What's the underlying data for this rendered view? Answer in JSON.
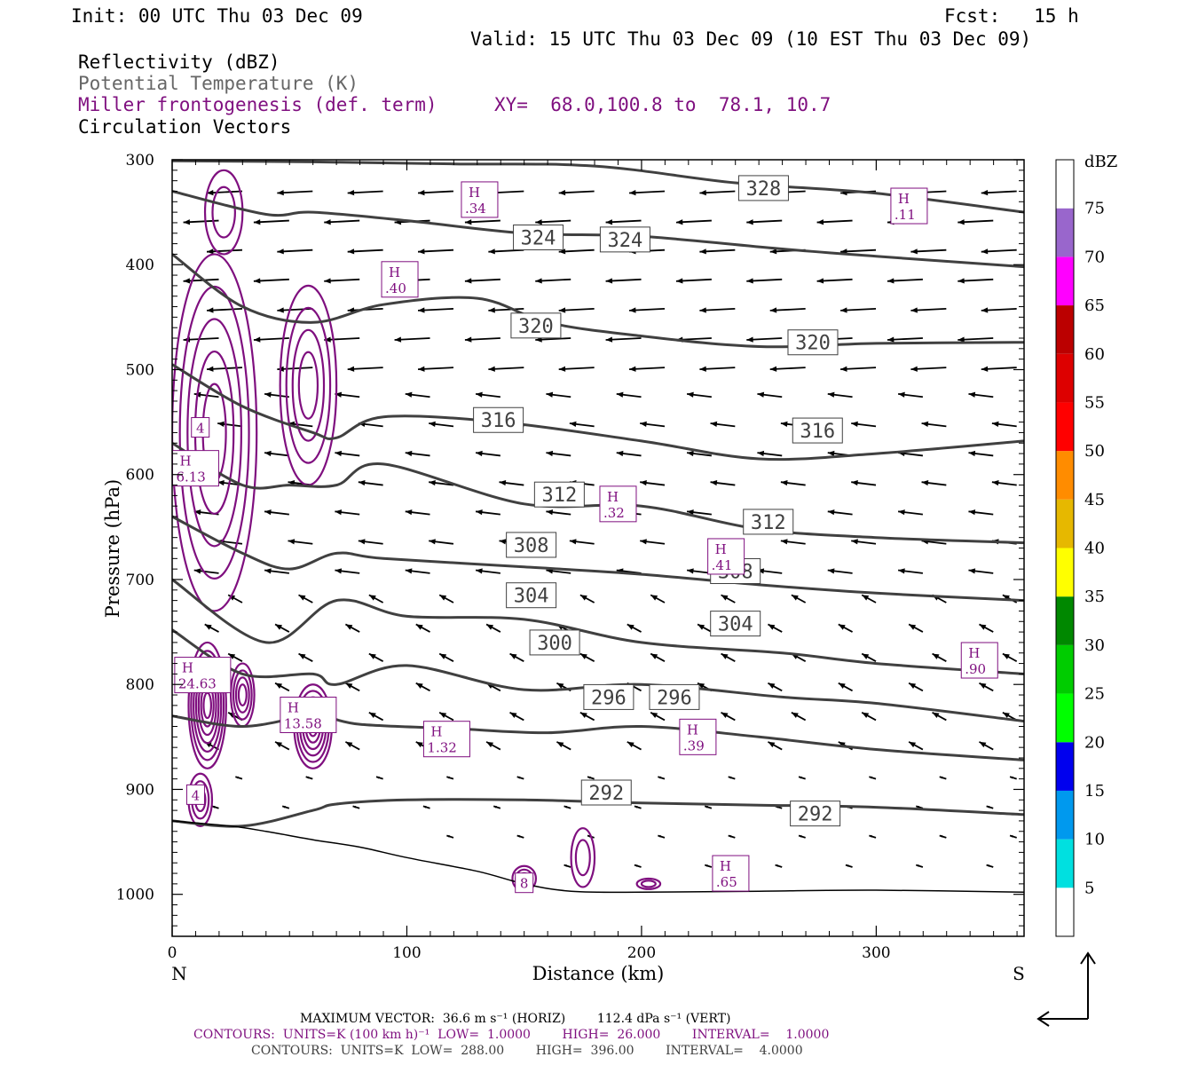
{
  "header": {
    "init": "Init: 00 UTC Thu 03 Dec 09",
    "fcst": "Fcst:   15 h",
    "valid": "Valid: 15 UTC Thu 03 Dec 09 (10 EST Thu 03 Dec 09)",
    "fields": [
      {
        "text": "Reflectivity (dBZ)",
        "color": "#000000"
      },
      {
        "text": "Potential Temperature (K)",
        "color": "#666666"
      },
      {
        "text": "Miller frontogenesis (def. term)",
        "color": "#7f0f7f"
      },
      {
        "text": "Circulation Vectors",
        "color": "#000000"
      }
    ],
    "xy": "XY=  68.0,100.8 to  78.1, 10.7"
  },
  "chart_data": {
    "type": "line",
    "xlabel": "Distance (km)",
    "ylabel": "Pressure (hPa)",
    "xlim": [
      0,
      363
    ],
    "ylim": [
      1040,
      300
    ],
    "x_ticks": [
      "0",
      "100",
      "200",
      "300"
    ],
    "y_ticks": [
      "300",
      "400",
      "500",
      "600",
      "700",
      "800",
      "900",
      "1000"
    ],
    "left_label": "N",
    "right_label": "S",
    "theta_contours": [
      {
        "name": "328",
        "x": [
          0,
          60,
          120,
          180,
          240,
          300,
          363
        ],
        "p": [
          301,
          302,
          304,
          306,
          322,
          332,
          350
        ]
      },
      {
        "name": "324",
        "x": [
          0,
          40,
          60,
          100,
          150,
          200,
          260,
          300,
          363
        ],
        "p": [
          330,
          352,
          350,
          358,
          370,
          373,
          385,
          392,
          402
        ]
      },
      {
        "name": "320",
        "x": [
          0,
          30,
          60,
          90,
          130,
          160,
          200,
          250,
          300,
          363
        ],
        "p": [
          390,
          440,
          455,
          438,
          432,
          455,
          468,
          478,
          475,
          474
        ]
      },
      {
        "name": "316",
        "x": [
          0,
          30,
          60,
          70,
          90,
          140,
          200,
          250,
          300,
          363
        ],
        "p": [
          495,
          535,
          560,
          565,
          545,
          550,
          568,
          585,
          580,
          568
        ]
      },
      {
        "name": "312",
        "x": [
          0,
          30,
          50,
          70,
          90,
          150,
          200,
          250,
          300,
          363
        ],
        "p": [
          570,
          610,
          610,
          610,
          590,
          628,
          630,
          652,
          660,
          665
        ]
      },
      {
        "name": "308",
        "x": [
          0,
          30,
          50,
          70,
          90,
          150,
          200,
          250,
          300,
          363
        ],
        "p": [
          640,
          675,
          690,
          675,
          680,
          688,
          695,
          705,
          713,
          720
        ]
      },
      {
        "name": "304",
        "x": [
          0,
          40,
          70,
          100,
          150,
          200,
          260,
          300,
          363
        ],
        "p": [
          700,
          760,
          720,
          735,
          738,
          760,
          770,
          780,
          790
        ]
      },
      {
        "name": "300",
        "x": [
          0,
          30,
          60,
          70,
          100,
          150,
          200,
          260,
          300,
          363
        ],
        "p": [
          748,
          790,
          790,
          800,
          782,
          805,
          800,
          812,
          818,
          835
        ]
      },
      {
        "name": "296",
        "x": [
          0,
          30,
          60,
          80,
          120,
          160,
          200,
          250,
          300,
          363
        ],
        "p": [
          830,
          840,
          830,
          838,
          842,
          846,
          840,
          850,
          862,
          872
        ]
      },
      {
        "name": "292",
        "x": [
          0,
          30,
          60,
          70,
          100,
          150,
          200,
          250,
          300,
          363
        ],
        "p": [
          930,
          935,
          920,
          914,
          910,
          910,
          913,
          915,
          917,
          924
        ]
      }
    ],
    "terrain": {
      "x": [
        0,
        25,
        40,
        60,
        80,
        100,
        130,
        150,
        170,
        200,
        250,
        300,
        363
      ],
      "p": [
        930,
        935,
        940,
        948,
        955,
        965,
        978,
        990,
        997,
        998,
        997,
        996,
        998
      ]
    },
    "theta_labels": [
      {
        "text": "328",
        "x": 252,
        "p": 327
      },
      {
        "text": "324",
        "x": 156,
        "p": 374
      },
      {
        "text": "324",
        "x": 193,
        "p": 376
      },
      {
        "text": "320",
        "x": 155,
        "p": 458
      },
      {
        "text": "320",
        "x": 273,
        "p": 474
      },
      {
        "text": "316",
        "x": 139,
        "p": 548
      },
      {
        "text": "316",
        "x": 275,
        "p": 558
      },
      {
        "text": "312",
        "x": 165,
        "p": 619
      },
      {
        "text": "312",
        "x": 254,
        "p": 645
      },
      {
        "text": "308",
        "x": 153,
        "p": 667
      },
      {
        "text": "308",
        "x": 240,
        "p": 692
      },
      {
        "text": "304",
        "x": 153,
        "p": 715
      },
      {
        "text": "304",
        "x": 240,
        "p": 742
      },
      {
        "text": "300",
        "x": 163,
        "p": 760
      },
      {
        "text": "296",
        "x": 186,
        "p": 812
      },
      {
        "text": "296",
        "x": 214,
        "p": 812
      },
      {
        "text": "292",
        "x": 185,
        "p": 903
      },
      {
        "text": "292",
        "x": 274,
        "p": 923
      }
    ],
    "frontogenesis_maxima": [
      {
        "value": ".34",
        "x": 131,
        "p": 338
      },
      {
        "value": ".11",
        "x": 314,
        "p": 344
      },
      {
        "value": ".40",
        "x": 97,
        "p": 414
      },
      {
        "value": "6.13",
        "x": 10,
        "p": 594
      },
      {
        "value": ".32",
        "x": 190,
        "p": 628
      },
      {
        "value": ".41",
        "x": 236,
        "p": 678
      },
      {
        "value": ".90",
        "x": 344,
        "p": 777
      },
      {
        "value": "24.63",
        "x": 13,
        "p": 791
      },
      {
        "value": "13.58",
        "x": 58,
        "p": 829
      },
      {
        "value": "1.32",
        "x": 117,
        "p": 852
      },
      {
        "value": ".39",
        "x": 224,
        "p": 850
      },
      {
        "value": ".65",
        "x": 238,
        "p": 980
      }
    ],
    "min_labels": [
      {
        "value": "4",
        "x": 12,
        "p": 555
      },
      {
        "value": "4",
        "x": 10,
        "p": 905
      },
      {
        "value": "8",
        "x": 150,
        "p": 989
      }
    ],
    "colorbar": {
      "label": "dBZ",
      "ticks": [
        "5",
        "10",
        "15",
        "20",
        "25",
        "30",
        "35",
        "40",
        "45",
        "50",
        "55",
        "60",
        "65",
        "70",
        "75"
      ],
      "colors": [
        "#ffffff",
        "#00e0e0",
        "#0099ee",
        "#0000ee",
        "#00ff00",
        "#00cc00",
        "#008800",
        "#ffff00",
        "#e6b800",
        "#ff8c00",
        "#ff0000",
        "#dd0000",
        "#bb0000",
        "#ff00ff",
        "#9966cc",
        "#ffffff"
      ]
    }
  },
  "footer": {
    "max_vector": "MAXIMUM VECTOR:  36.6 m s⁻¹ (HORIZ)        112.4 dPa s⁻¹ (VERT)",
    "contours1": "CONTOURS:  UNITS=K (100 km h)⁻¹  LOW=  1.0000        HIGH=  26.000        INTERVAL=    1.0000",
    "contours2": "CONTOURS:  UNITS=K  LOW=  288.00        HIGH=  396.00        INTERVAL=    4.0000"
  },
  "colors": {
    "theta": "#404040",
    "frontogenesis": "#7f0f7f",
    "vector": "#000000"
  }
}
